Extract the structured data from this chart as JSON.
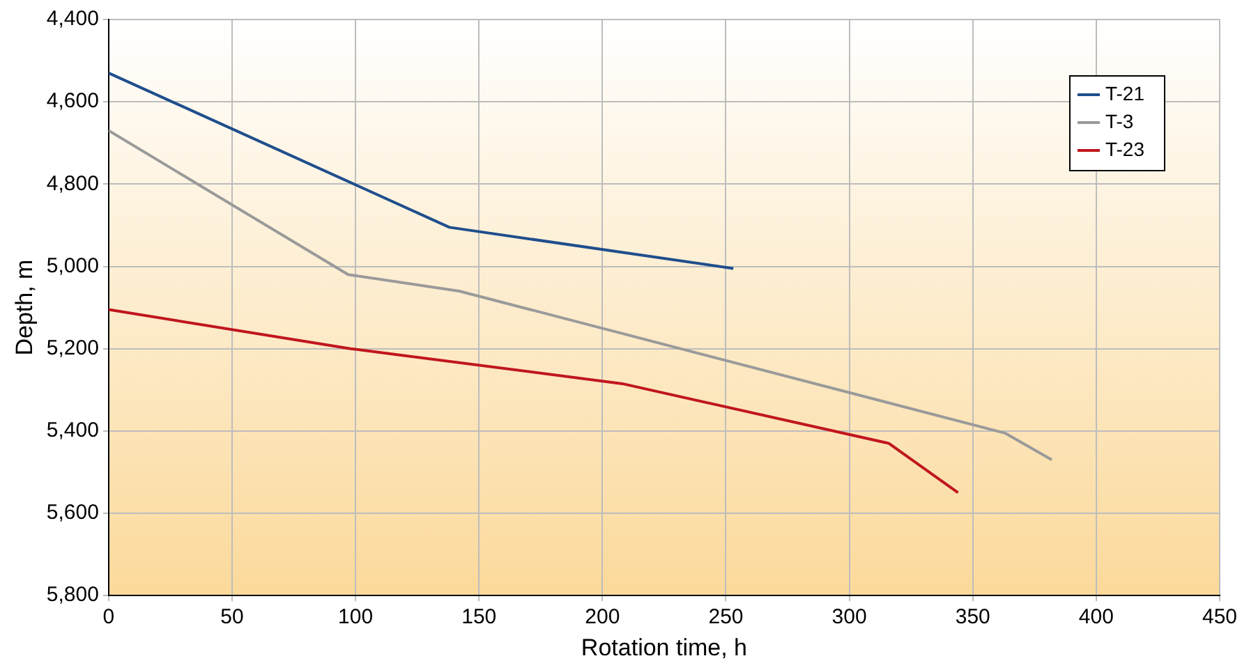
{
  "chart_data": {
    "type": "line",
    "xlabel": "Rotation time, h",
    "ylabel": "Depth, m",
    "xlim": [
      0,
      450
    ],
    "xticks": [
      0,
      50,
      100,
      150,
      200,
      250,
      300,
      350,
      400,
      450
    ],
    "ylim": [
      5800,
      4400
    ],
    "yticks": [
      {
        "value": 4400,
        "label": "4,400"
      },
      {
        "value": 4600,
        "label": "4,600"
      },
      {
        "value": 4800,
        "label": "4,800"
      },
      {
        "value": 5000,
        "label": "5,000"
      },
      {
        "value": 5200,
        "label": "5,200"
      },
      {
        "value": 5400,
        "label": "5,400"
      },
      {
        "value": 5600,
        "label": "5,600"
      },
      {
        "value": 5800,
        "label": "5,800"
      }
    ],
    "grid": true,
    "legend": "top right",
    "marker": "none",
    "line_style": "solid",
    "series": [
      {
        "name": "T-21",
        "color": "#1f4e8c",
        "x": [
          0,
          138,
          253
        ],
        "values": [
          4530,
          4905,
          5005
        ]
      },
      {
        "name": "T-3",
        "color": "#9a9a9a",
        "x": [
          0,
          97,
          142,
          363,
          382
        ],
        "values": [
          4670,
          5020,
          5060,
          5405,
          5470
        ]
      },
      {
        "name": "T-23",
        "color": "#c0161d",
        "x": [
          0,
          98,
          208,
          316,
          344
        ],
        "values": [
          5105,
          5200,
          5285,
          5430,
          5550
        ]
      }
    ]
  }
}
